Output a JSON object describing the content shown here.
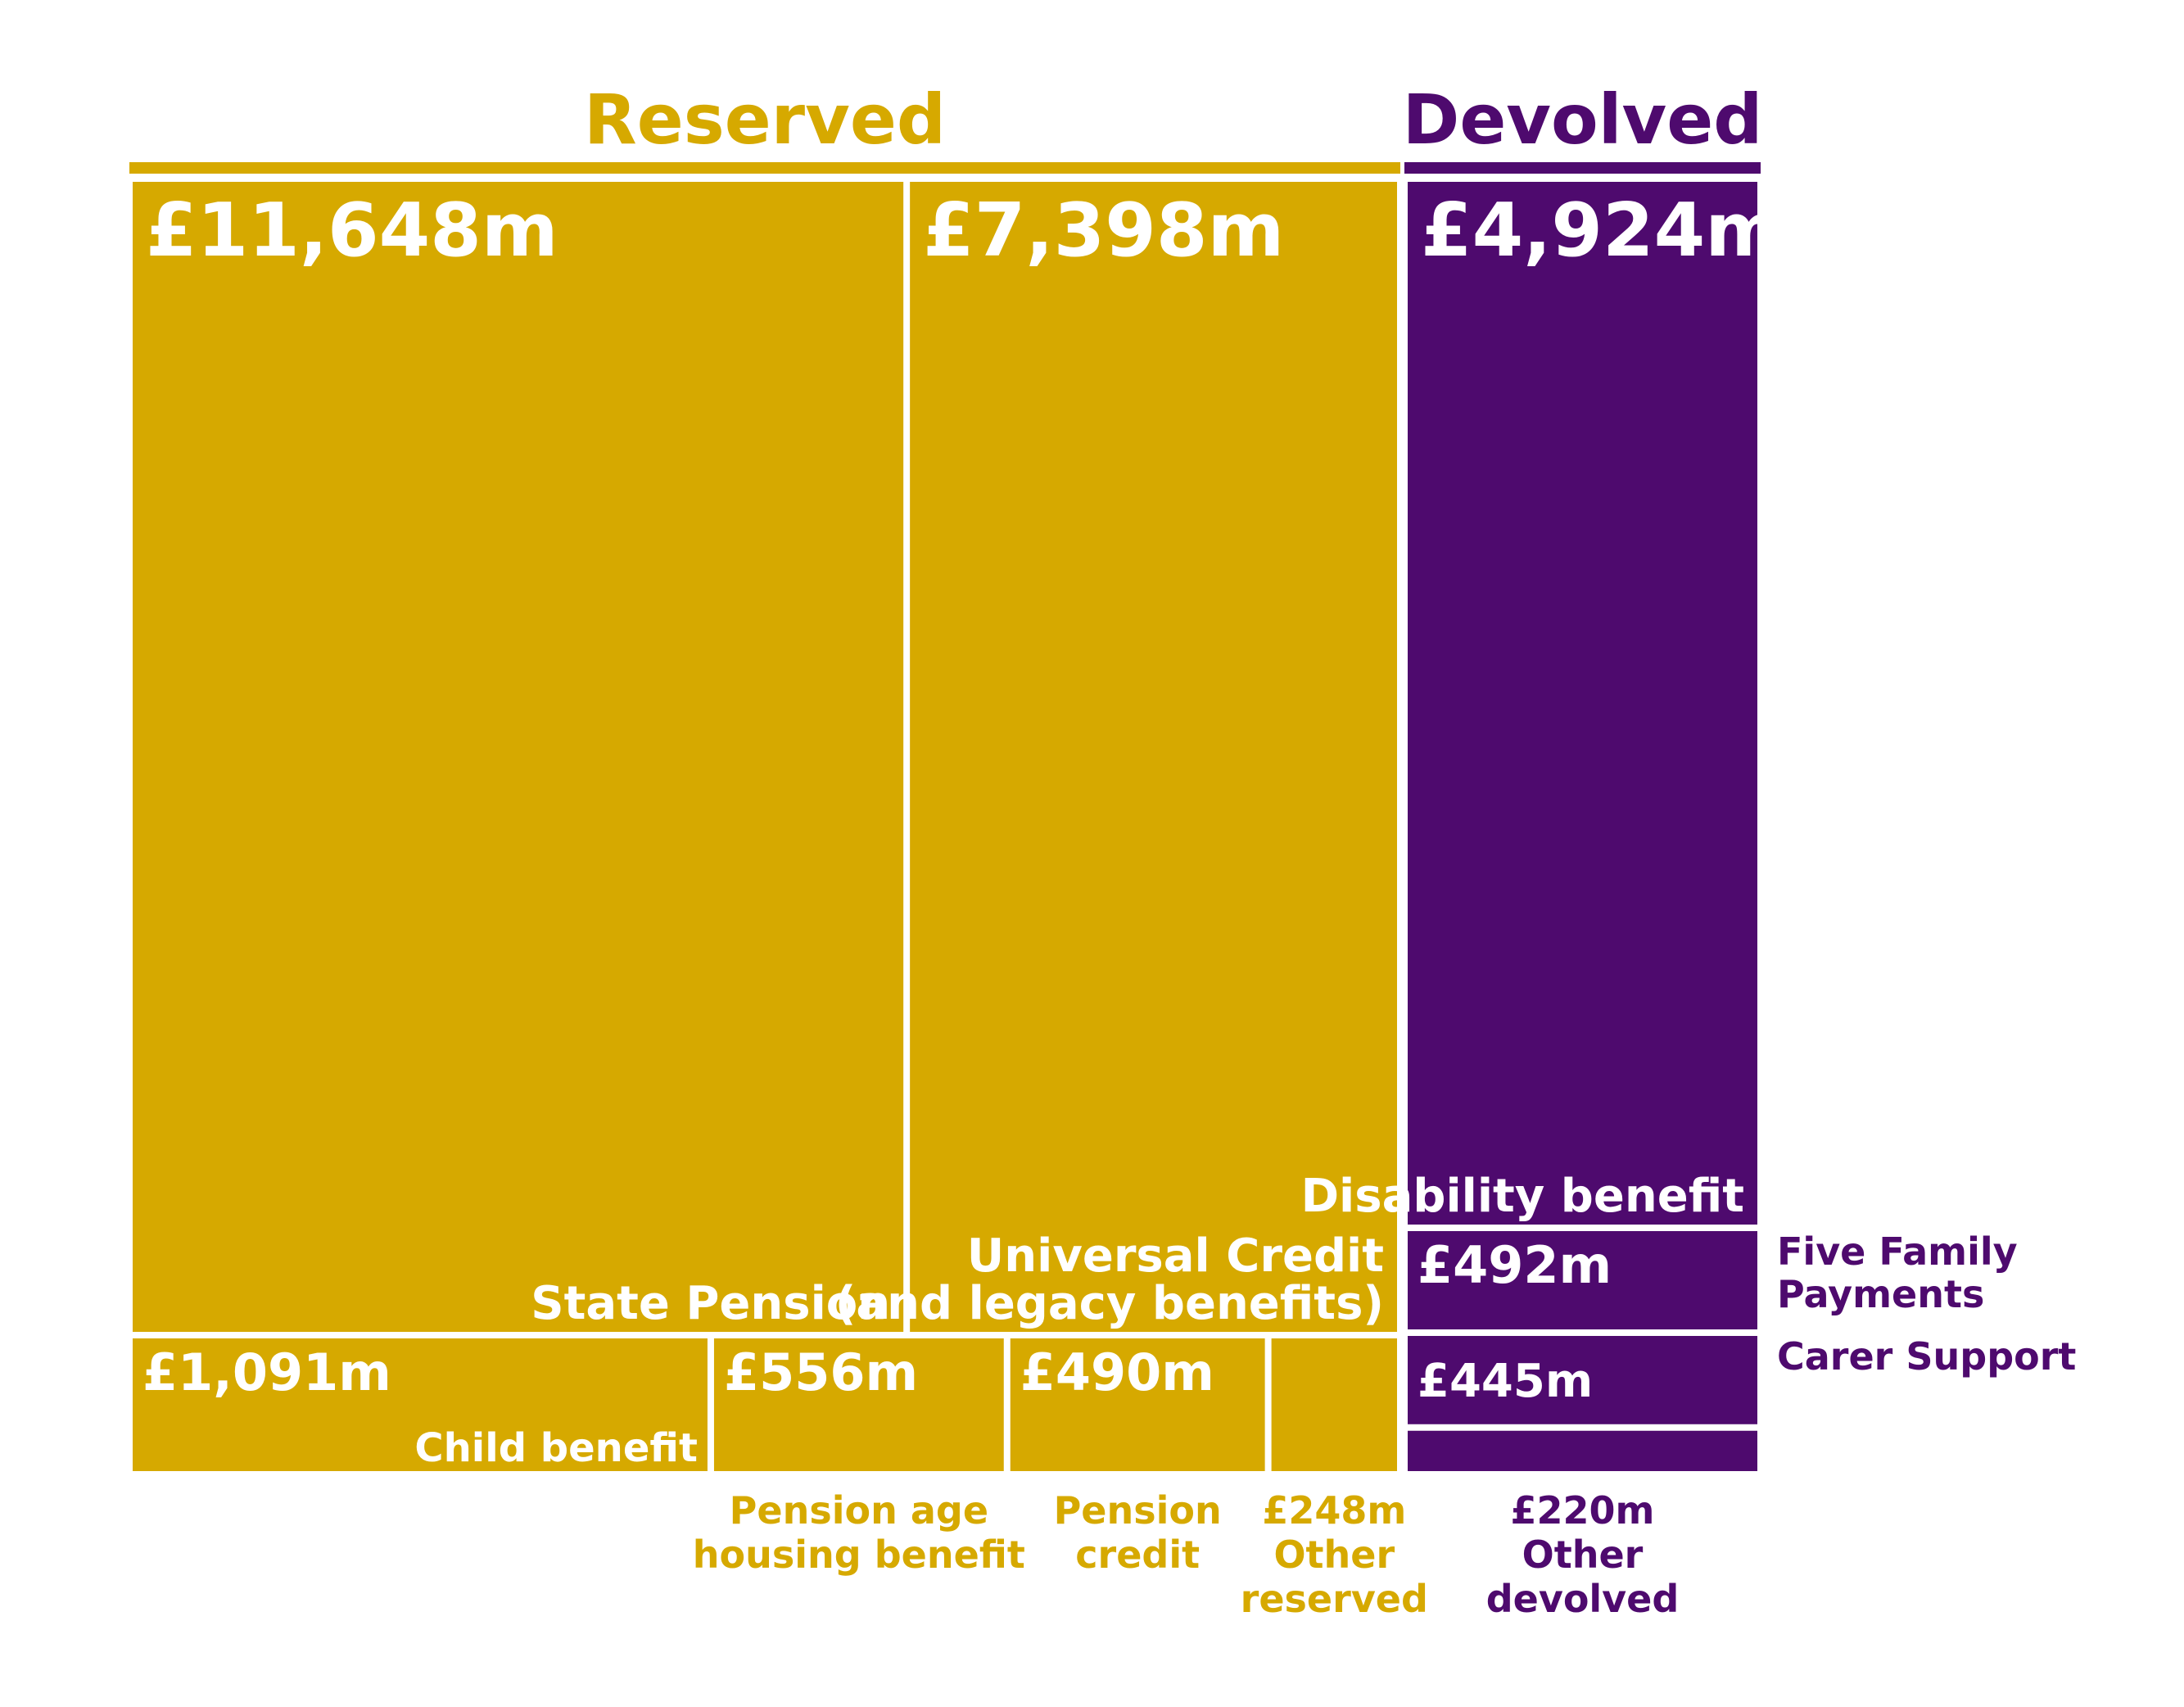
{
  "colors": {
    "reserved": "#D6A900",
    "devolved": "#4E0A6E",
    "divider": "#FFFFFF",
    "background": "#FFFFFF"
  },
  "chart_data": {
    "type": "treemap",
    "groups": [
      {
        "name": "Reserved",
        "color": "#D6A900"
      },
      {
        "name": "Devolved",
        "color": "#4E0A6E"
      }
    ],
    "items": [
      {
        "group": "Reserved",
        "name": "State Pension",
        "value": 11648,
        "value_label": "£11,648m"
      },
      {
        "group": "Reserved",
        "name": "Universal Credit\n(and legacy benefits)",
        "value": 7398,
        "value_label": "£7,398m"
      },
      {
        "group": "Reserved",
        "name": "Child benefit",
        "value": 1091,
        "value_label": "£1,091m"
      },
      {
        "group": "Reserved",
        "name": "Pension age\nhousing benefit",
        "value": 556,
        "value_label": "£556m"
      },
      {
        "group": "Reserved",
        "name": "Pension\ncredit",
        "value": 490,
        "value_label": "£490m"
      },
      {
        "group": "Reserved",
        "name": "Other\nreserved",
        "value": 248,
        "value_label": "£248m"
      },
      {
        "group": "Devolved",
        "name": "Disability benefit",
        "value": 4924,
        "value_label": "£4,924m"
      },
      {
        "group": "Devolved",
        "name": "Five Family\nPayments",
        "value": 492,
        "value_label": "£492m"
      },
      {
        "group": "Devolved",
        "name": "Carer Support",
        "value": 445,
        "value_label": "£445m"
      },
      {
        "group": "Devolved",
        "name": "Other\ndevolved",
        "value": 220,
        "value_label": "£220m"
      }
    ]
  }
}
